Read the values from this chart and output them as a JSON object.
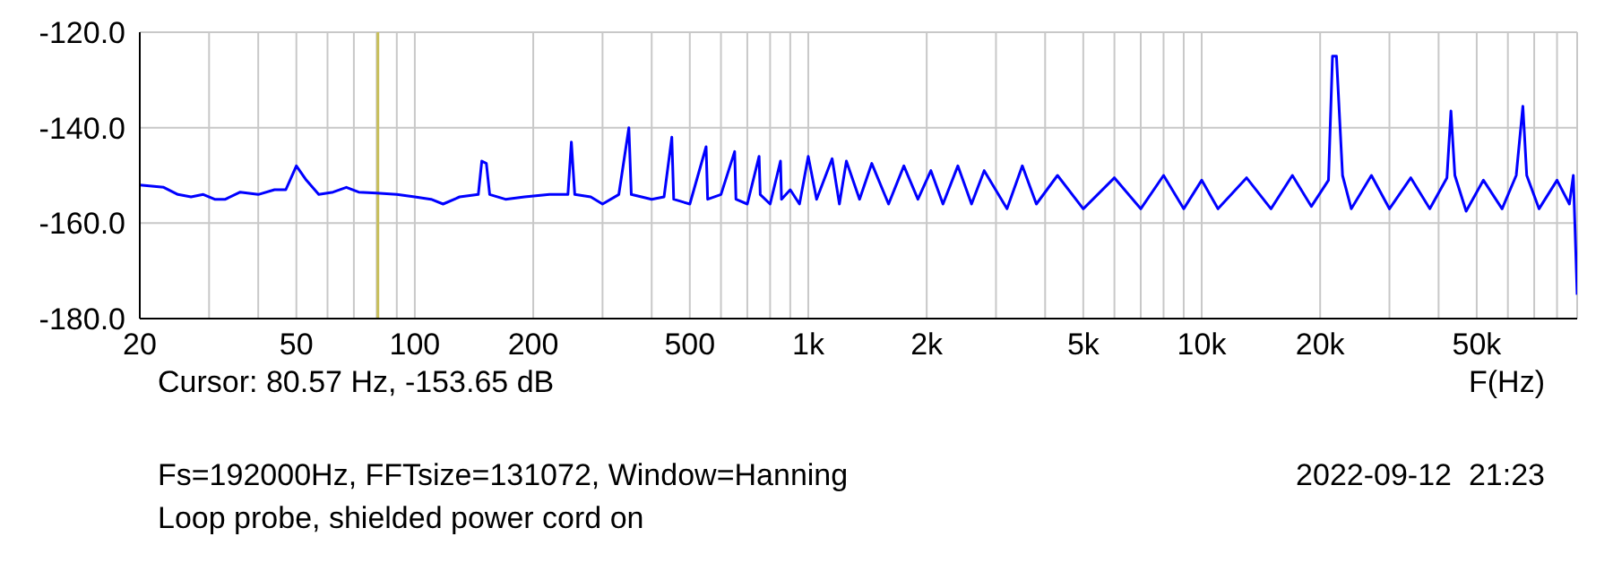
{
  "chart_data": {
    "type": "line",
    "xlabel": "F(Hz)",
    "log": "x",
    "grid": true,
    "marker": "none",
    "line_style": "solid",
    "xlim": [
      20,
      90000
    ],
    "xticks": [
      20,
      {
        "value": 30,
        "label": null
      },
      {
        "value": 40,
        "label": null
      },
      50,
      {
        "value": 60,
        "label": null
      },
      {
        "value": 70,
        "label": null
      },
      {
        "value": 80,
        "label": null
      },
      {
        "value": 90,
        "label": null
      },
      100,
      200,
      {
        "value": 300,
        "label": null
      },
      {
        "value": 400,
        "label": null
      },
      500,
      {
        "value": 600,
        "label": null
      },
      {
        "value": 700,
        "label": null
      },
      {
        "value": 800,
        "label": null
      },
      {
        "value": 900,
        "label": null
      },
      {
        "value": 1000,
        "label": "1k"
      },
      {
        "value": 2000,
        "label": "2k"
      },
      {
        "value": 3000,
        "label": null
      },
      {
        "value": 4000,
        "label": null
      },
      {
        "value": 5000,
        "label": "5k"
      },
      {
        "value": 6000,
        "label": null
      },
      {
        "value": 7000,
        "label": null
      },
      {
        "value": 8000,
        "label": null
      },
      {
        "value": 9000,
        "label": null
      },
      {
        "value": 10000,
        "label": "10k"
      },
      {
        "value": 20000,
        "label": "20k"
      },
      {
        "value": 30000,
        "label": null
      },
      {
        "value": 40000,
        "label": null
      },
      {
        "value": 50000,
        "label": "50k"
      },
      {
        "value": 60000,
        "label": null
      },
      {
        "value": 70000,
        "label": null
      },
      {
        "value": 80000,
        "label": null
      }
    ],
    "ylim": [
      -180,
      -120
    ],
    "yticks": [
      {
        "value": -180,
        "label": "-180.0"
      },
      {
        "value": -160,
        "label": "-160.0"
      },
      {
        "value": -140,
        "label": "-140.0"
      },
      {
        "value": -120,
        "label": "-120.0"
      }
    ],
    "ref_lines": [
      {
        "axis": "x",
        "value": 80.57,
        "color": "#c8bf5a"
      }
    ],
    "annotations": [
      "Cursor: 80.57 Hz, -153.65 dB",
      "Fs=192000Hz, FFTsize=131072, Window=Hanning",
      "2022-09-12  21:23",
      "Loop probe, shielded power cord on"
    ],
    "series": [
      {
        "color": "#0000ff",
        "x": [
          20,
          23,
          25,
          27,
          29,
          31,
          33,
          36,
          40,
          44,
          47,
          50,
          53,
          57,
          62,
          67,
          72,
          80,
          90,
          100,
          110,
          118,
          130,
          145,
          148,
          152,
          155,
          170,
          190,
          220,
          245,
          250,
          255,
          280,
          300,
          330,
          350,
          355,
          400,
          430,
          450,
          455,
          500,
          550,
          555,
          600,
          650,
          655,
          700,
          750,
          755,
          800,
          850,
          855,
          900,
          950,
          1000,
          1050,
          1150,
          1200,
          1250,
          1350,
          1450,
          1600,
          1750,
          1900,
          2050,
          2200,
          2400,
          2600,
          2800,
          3200,
          3500,
          3800,
          4300,
          5000,
          6000,
          7000,
          8000,
          9000,
          10000,
          11000,
          13000,
          15000,
          17000,
          19000,
          21000,
          21500,
          22000,
          22800,
          24000,
          27000,
          30000,
          34000,
          38000,
          42000,
          43000,
          44000,
          47000,
          52000,
          58000,
          63000,
          65500,
          67000,
          72000,
          80000,
          86000,
          88000,
          90000
        ],
        "values": [
          -152,
          -152.5,
          -154,
          -154.5,
          -154,
          -155,
          -155,
          -153.5,
          -154,
          -153,
          -153,
          -148,
          -151,
          -154,
          -153.5,
          -152.5,
          -153.5,
          -153.7,
          -154,
          -154.5,
          -155,
          -156,
          -154.5,
          -154,
          -147,
          -147.5,
          -154,
          -155,
          -154.5,
          -154,
          -154,
          -143,
          -154,
          -154.5,
          -156,
          -154,
          -140,
          -154,
          -155,
          -154.5,
          -142,
          -155,
          -156,
          -144,
          -155,
          -154,
          -145,
          -155,
          -156,
          -146,
          -154,
          -156,
          -147,
          -155,
          -153,
          -156,
          -146,
          -155,
          -146.5,
          -156,
          -147,
          -155,
          -147.5,
          -156,
          -148,
          -155,
          -149,
          -156,
          -148,
          -156,
          -149,
          -157,
          -148,
          -156,
          -150,
          -157,
          -150.5,
          -157,
          -150,
          -157,
          -151,
          -157,
          -150.5,
          -157,
          -150,
          -156.5,
          -151,
          -125,
          -125,
          -150,
          -157,
          -150,
          -157,
          -150.5,
          -157,
          -150.5,
          -136.5,
          -150,
          -157.5,
          -151,
          -157,
          -150,
          -135.5,
          -150,
          -157,
          -151,
          -156,
          -150,
          -175
        ]
      }
    ]
  }
}
